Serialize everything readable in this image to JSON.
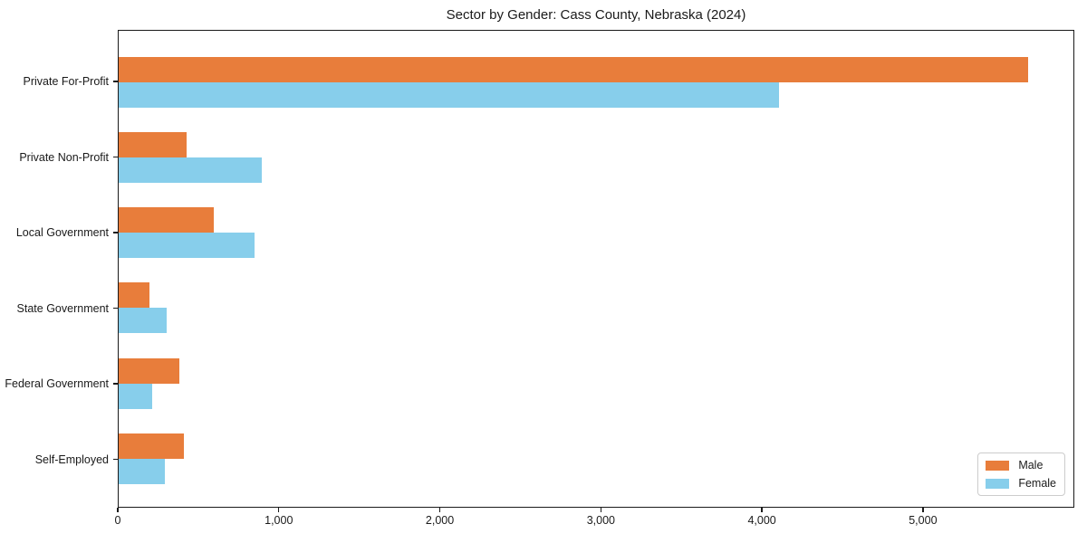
{
  "chart_data": {
    "type": "bar",
    "orientation": "horizontal",
    "title": "Sector by Gender: Cass County, Nebraska (2024)",
    "categories": [
      "Private For-Profit",
      "Private Non-Profit",
      "Local Government",
      "State Government",
      "Federal Government",
      "Self-Employed"
    ],
    "series": [
      {
        "name": "Male",
        "color": "#e87d3b",
        "values": [
          5660,
          425,
          590,
          190,
          375,
          405
        ]
      },
      {
        "name": "Female",
        "color": "#87ceeb",
        "values": [
          4110,
          890,
          845,
          300,
          210,
          290
        ]
      }
    ],
    "xlabel": "",
    "ylabel": "",
    "xlim": [
      0,
      5940
    ],
    "x_ticks": [
      0,
      1000,
      2000,
      3000,
      4000,
      5000
    ],
    "x_tick_labels": [
      "0",
      "1,000",
      "2,000",
      "3,000",
      "4,000",
      "5,000"
    ],
    "legend_position": "lower right",
    "grid": false,
    "plot_border": true
  }
}
